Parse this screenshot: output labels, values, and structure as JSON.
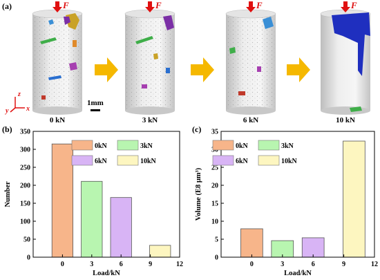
{
  "panel_a": {
    "label": "(a)",
    "force_label": "F",
    "scale_bar_label": "1mm",
    "axes": {
      "z": "z",
      "y": "y",
      "x": "x"
    },
    "specimens": [
      {
        "load_label": "0 kN"
      },
      {
        "load_label": "3 kN"
      },
      {
        "load_label": "6 kN"
      },
      {
        "load_label": "10 kN"
      }
    ],
    "colors": {
      "arrow": "#f5b800",
      "force": "#e01010",
      "cylinder": "#d9d9d9"
    }
  },
  "chart_data": [
    {
      "panel_label": "(b)",
      "type": "bar",
      "xlabel": "Load/kN",
      "ylabel": "Number",
      "xlim": [
        -3,
        12
      ],
      "ylim": [
        0,
        350
      ],
      "xticks": [
        0,
        3,
        6,
        9,
        12
      ],
      "yticks": [
        0,
        50,
        100,
        150,
        200,
        250,
        300,
        350
      ],
      "legend_position": "top",
      "series": [
        {
          "name": "0kN",
          "x": 0,
          "value": 315,
          "color": "#f7b58a"
        },
        {
          "name": "3kN",
          "x": 3,
          "value": 211,
          "color": "#b8f5b0"
        },
        {
          "name": "6kN",
          "x": 6,
          "value": 166,
          "color": "#d8b4f5"
        },
        {
          "name": "10kN",
          "x": 10,
          "value": 33,
          "color": "#fdf6c0"
        }
      ]
    },
    {
      "panel_label": "(c)",
      "type": "bar",
      "xlabel": "Load/kN",
      "ylabel": "Volume (E8 μm³)",
      "xlim": [
        -3,
        12
      ],
      "ylim": [
        0,
        35
      ],
      "xticks": [
        0,
        3,
        6,
        9,
        12
      ],
      "yticks": [
        0,
        5,
        10,
        15,
        20,
        25,
        30,
        35
      ],
      "legend_position": "top",
      "series": [
        {
          "name": "0kN",
          "x": 0,
          "value": 7.9,
          "color": "#f7b58a"
        },
        {
          "name": "3kN",
          "x": 3,
          "value": 4.6,
          "color": "#b8f5b0"
        },
        {
          "name": "6kN",
          "x": 6,
          "value": 5.4,
          "color": "#d8b4f5"
        },
        {
          "name": "10kN",
          "x": 10,
          "value": 32.3,
          "color": "#fdf6c0"
        }
      ]
    }
  ]
}
